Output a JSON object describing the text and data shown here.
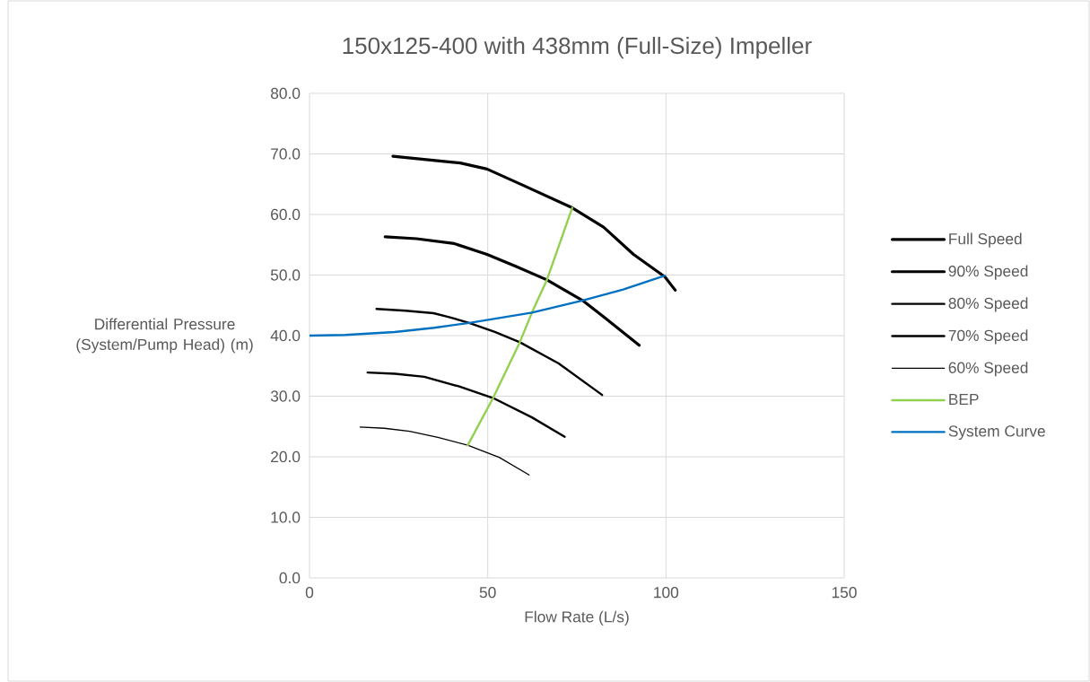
{
  "chart_data": {
    "type": "line",
    "title": "150x125-400 with 438mm (Full-Size) Impeller",
    "xlabel": "Flow Rate (L/s)",
    "ylabel": "Differential Pressure (System/Pump Head) (m)",
    "xlim": [
      0,
      150
    ],
    "xticks": [
      0,
      50,
      100,
      150
    ],
    "ylim": [
      0,
      80
    ],
    "yticks": [
      {
        "value": 0,
        "label": "0.0"
      },
      {
        "value": 10,
        "label": "10.0"
      },
      {
        "value": 20,
        "label": "20.0"
      },
      {
        "value": 30,
        "label": "30.0"
      },
      {
        "value": 40,
        "label": "40.0"
      },
      {
        "value": 50,
        "label": "50.0"
      },
      {
        "value": 60,
        "label": "60.0"
      },
      {
        "value": 70,
        "label": "70.0"
      },
      {
        "value": 80,
        "label": "80.0"
      }
    ],
    "grid": true,
    "legend": "right",
    "marker": "none",
    "line_style": "solid",
    "series": [
      {
        "name": "Full Speed",
        "color": "#000000",
        "x": [
          23.4,
          42.3,
          49.8,
          60,
          73.7,
          82.5,
          90.9,
          99.7,
          102.6
        ],
        "values": [
          69.6,
          68.5,
          67.5,
          64.8,
          61.1,
          57.9,
          53.4,
          49.7,
          47.5
        ]
      },
      {
        "name": "90% Speed",
        "color": "#000000",
        "x": [
          21.2,
          30,
          40.6,
          49.8,
          58,
          66.6,
          76.6,
          82.5,
          92.5
        ],
        "values": [
          56.3,
          56.0,
          55.2,
          53.4,
          51.4,
          49.2,
          45.8,
          43.1,
          38.4
        ]
      },
      {
        "name": "80% Speed",
        "color": "#000000",
        "x": [
          18.8,
          27,
          34.8,
          38.9,
          44.8,
          52,
          59.0,
          69.9,
          82.1
        ],
        "values": [
          44.4,
          44.1,
          43.7,
          43.1,
          42.1,
          40.6,
          38.9,
          35.4,
          30.2
        ]
      },
      {
        "name": "70% Speed",
        "color": "#000000",
        "x": [
          16.3,
          24,
          32.2,
          42,
          51.5,
          62.4,
          71.6
        ],
        "values": [
          33.9,
          33.7,
          33.2,
          31.6,
          29.7,
          26.5,
          23.3
        ]
      },
      {
        "name": "60% Speed",
        "color": "#000000",
        "x": [
          14.2,
          21,
          28.1,
          36,
          44.4,
          53.2,
          61.6
        ],
        "values": [
          24.9,
          24.7,
          24.2,
          23.2,
          21.9,
          19.9,
          17.0
        ]
      },
      {
        "name": "BEP",
        "color": "#92d050",
        "x": [
          44.4,
          51.5,
          59.0,
          62.4,
          66.6,
          73.7
        ],
        "values": [
          21.9,
          29.7,
          38.9,
          43.8,
          49.2,
          61.1
        ]
      },
      {
        "name": "System Curve",
        "color": "#0070c0",
        "x": [
          0,
          10,
          23.9,
          35,
          44.8,
          62.4,
          76.6,
          88,
          99.7
        ],
        "values": [
          40.0,
          40.1,
          40.6,
          41.3,
          42.1,
          43.8,
          45.8,
          47.6,
          49.9
        ]
      }
    ]
  }
}
